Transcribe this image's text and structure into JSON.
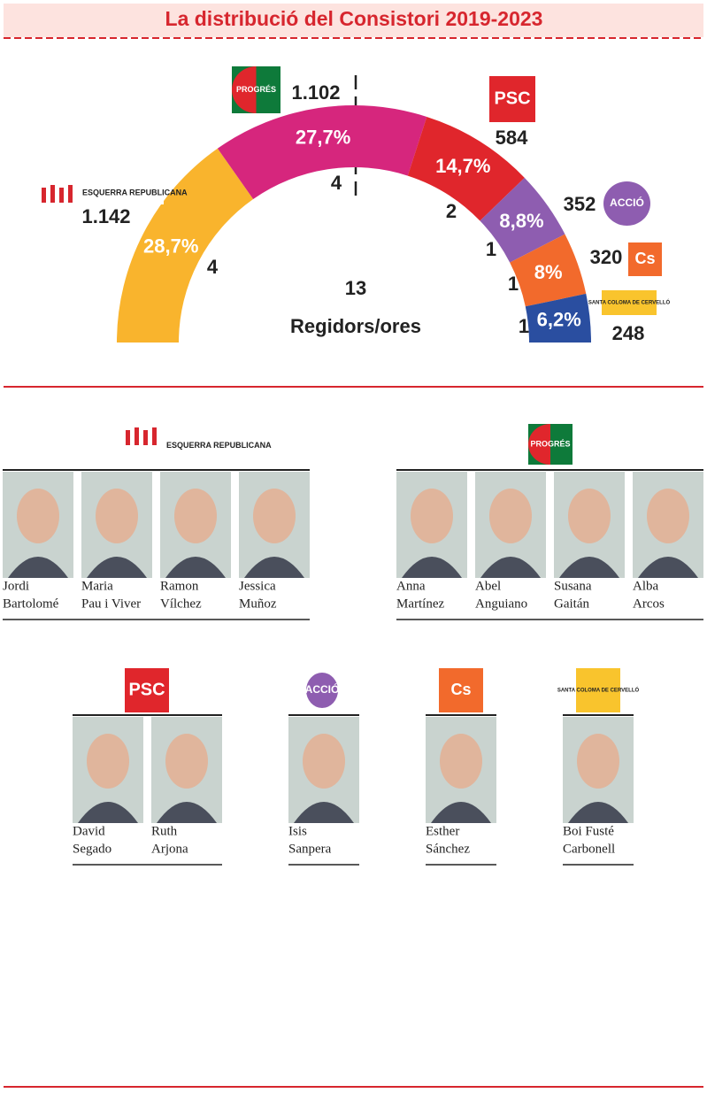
{
  "header": {
    "title": "La distribució del Consistori 2019-2023"
  },
  "chart_data": {
    "type": "semi-donut",
    "categories": [
      "ESQUERRA REPUBLICANA",
      "PROGRÉS",
      "PSC",
      "ACCIÓ",
      "Cs",
      "SANTA COLOMA DE CERVELLÓ"
    ],
    "values": [
      28.7,
      27.7,
      14.7,
      8.8,
      8,
      6.2
    ],
    "value_labels": [
      "28,7%",
      "27,7%",
      "14,7%",
      "8,8%",
      "8%",
      "6,2%"
    ],
    "seats": [
      4,
      4,
      2,
      1,
      1,
      1
    ],
    "votes": [
      {
        "value": 1142,
        "label": "1.142"
      },
      {
        "value": 1102,
        "label": "1.102"
      },
      584,
      352,
      320,
      248
    ],
    "colors": [
      "#f9b42d",
      "#d6267d",
      "#e0262c",
      "#8e5db0",
      "#f26a2c",
      "#2a4ea0"
    ],
    "total_seats": 13,
    "total_label": "Regidors/ores"
  },
  "groups": [
    {
      "members": [
        [
          "Jordi",
          "Bartolomé"
        ],
        [
          "Maria",
          "Pau i Viver"
        ],
        [
          "Ramon",
          "Vílchez"
        ],
        [
          "Jessica",
          "Muñoz"
        ]
      ]
    },
    {
      "members": [
        [
          "Anna",
          "Martínez"
        ],
        [
          "Abel",
          "Anguiano"
        ],
        [
          "Susana",
          "Gaitán"
        ],
        [
          "Alba",
          "Arcos"
        ]
      ]
    },
    {
      "members": [
        [
          "David",
          "Segado"
        ],
        [
          "Ruth",
          "Arjona"
        ]
      ]
    },
    {
      "members": [
        [
          "Isis",
          "Sanpera"
        ]
      ]
    },
    {
      "members": [
        [
          "Esther",
          "Sánchez"
        ]
      ]
    },
    {
      "members": [
        [
          "Boi Fusté",
          "Carbonell"
        ]
      ]
    }
  ]
}
